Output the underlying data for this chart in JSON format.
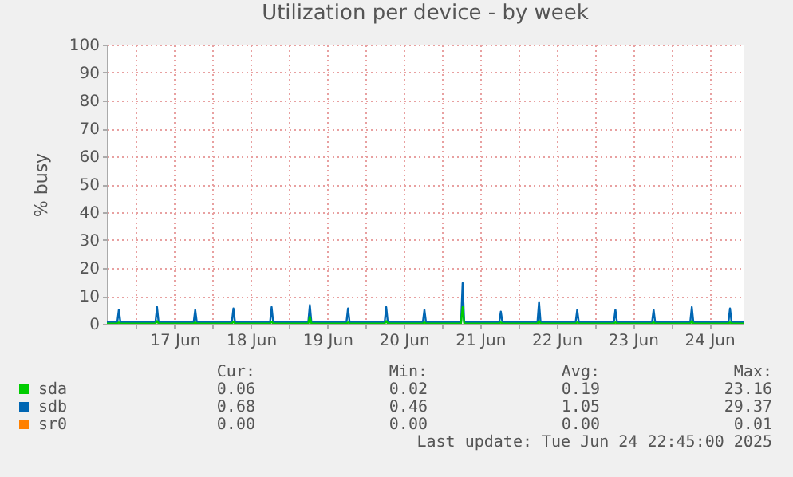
{
  "chart_data": {
    "type": "line",
    "title": "Utilization per device - by week",
    "ylabel": "% busy",
    "x": [
      "2025-06-16T14:45",
      "2025-06-16T18:00",
      "2025-06-16T18:30",
      "2025-06-16T19:00",
      "2025-06-17T06:00",
      "2025-06-17T06:30",
      "2025-06-17T07:00",
      "2025-06-17T18:00",
      "2025-06-17T18:30",
      "2025-06-17T19:00",
      "2025-06-18T06:00",
      "2025-06-18T06:30",
      "2025-06-18T07:00",
      "2025-06-18T18:00",
      "2025-06-18T18:30",
      "2025-06-18T19:00",
      "2025-06-19T06:00",
      "2025-06-19T06:30",
      "2025-06-19T07:00",
      "2025-06-19T18:00",
      "2025-06-19T18:30",
      "2025-06-19T19:00",
      "2025-06-20T06:00",
      "2025-06-20T06:30",
      "2025-06-20T07:00",
      "2025-06-20T18:00",
      "2025-06-20T18:30",
      "2025-06-20T19:00",
      "2025-06-21T06:00",
      "2025-06-21T06:30",
      "2025-06-21T07:00",
      "2025-06-21T18:00",
      "2025-06-21T18:30",
      "2025-06-21T19:00",
      "2025-06-22T06:00",
      "2025-06-22T06:30",
      "2025-06-22T07:00",
      "2025-06-22T18:00",
      "2025-06-22T18:30",
      "2025-06-22T19:00",
      "2025-06-23T06:00",
      "2025-06-23T06:30",
      "2025-06-23T07:00",
      "2025-06-23T18:00",
      "2025-06-23T18:30",
      "2025-06-23T19:00",
      "2025-06-24T06:00",
      "2025-06-24T06:30",
      "2025-06-24T07:00",
      "2025-06-24T18:00",
      "2025-06-24T18:30",
      "2025-06-24T19:00",
      "2025-06-24T22:45"
    ],
    "series": [
      {
        "name": "sda",
        "color": "#00cc00",
        "values": [
          0.1,
          0.1,
          0.5,
          0.1,
          0.1,
          1,
          0.1,
          0.1,
          0.5,
          0.1,
          0.1,
          0.8,
          0.1,
          0.1,
          0.8,
          0.1,
          0.1,
          2.5,
          0.1,
          0.1,
          0.5,
          0.1,
          0.1,
          1,
          0.1,
          0.1,
          0.5,
          0.1,
          0.1,
          6,
          0.1,
          0.1,
          0.5,
          0.1,
          0.1,
          1,
          0.1,
          0.1,
          0.5,
          0.1,
          0.1,
          0.5,
          0.1,
          0.1,
          0.5,
          0.1,
          0.1,
          1,
          0.1,
          0.1,
          0.5,
          0.1,
          0.1
        ]
      },
      {
        "name": "sdb",
        "color": "#0066b3",
        "values": [
          0.5,
          0.5,
          5,
          0.5,
          0.5,
          6,
          0.5,
          0.5,
          5,
          0.5,
          0.5,
          5.5,
          0.5,
          0.5,
          6,
          0.5,
          0.5,
          6.7,
          0.5,
          0.5,
          5.5,
          0.5,
          0.5,
          6,
          0.5,
          0.5,
          5,
          0.5,
          0.5,
          14.6,
          0.5,
          0.5,
          4.4,
          0.5,
          0.5,
          7.8,
          0.5,
          0.5,
          5,
          0.5,
          0.5,
          5,
          0.5,
          0.5,
          5,
          0.5,
          0.5,
          6,
          0.5,
          0.5,
          5.5,
          0.5,
          0.5
        ]
      },
      {
        "name": "sr0",
        "color": "#ff8000",
        "values": [
          null,
          null,
          null,
          null,
          null,
          null,
          null,
          null,
          null,
          null,
          null,
          null,
          null,
          null,
          null,
          null,
          null,
          null,
          null,
          null,
          null,
          null,
          null,
          null,
          null,
          null,
          null,
          null,
          null,
          null,
          null,
          null,
          null,
          null,
          null,
          null,
          null,
          null,
          null,
          null,
          null,
          null,
          null,
          null,
          null,
          null,
          null,
          null,
          null,
          null,
          null,
          null,
          null
        ]
      }
    ],
    "xlim": [
      "2025-06-16T14:45",
      "2025-06-24T22:45"
    ],
    "xticks": [
      {
        "value": "2025-06-17T00:00",
        "label": null
      },
      {
        "value": "2025-06-17T12:00",
        "label": "17 Jun"
      },
      {
        "value": "2025-06-18T00:00",
        "label": null
      },
      {
        "value": "2025-06-18T12:00",
        "label": "18 Jun"
      },
      {
        "value": "2025-06-19T00:00",
        "label": null
      },
      {
        "value": "2025-06-19T12:00",
        "label": "19 Jun"
      },
      {
        "value": "2025-06-20T00:00",
        "label": null
      },
      {
        "value": "2025-06-20T12:00",
        "label": "20 Jun"
      },
      {
        "value": "2025-06-21T00:00",
        "label": null
      },
      {
        "value": "2025-06-21T12:00",
        "label": "21 Jun"
      },
      {
        "value": "2025-06-22T00:00",
        "label": null
      },
      {
        "value": "2025-06-22T12:00",
        "label": "22 Jun"
      },
      {
        "value": "2025-06-23T00:00",
        "label": null
      },
      {
        "value": "2025-06-23T12:00",
        "label": "23 Jun"
      },
      {
        "value": "2025-06-24T00:00",
        "label": null
      },
      {
        "value": "2025-06-24T12:00",
        "label": "24 Jun"
      }
    ],
    "ylim": [
      0,
      100
    ],
    "yticks": [
      0,
      10,
      20,
      30,
      40,
      50,
      60,
      70,
      80,
      90,
      100
    ],
    "grid": true,
    "legend": "bottom",
    "marker": "none",
    "line_style": "solid",
    "annotations": [
      "Cur:",
      "Min:",
      "Avg:",
      "Max:",
      "0.06",
      "0.02",
      "0.19",
      "23.16",
      "0.68",
      "0.46",
      "1.05",
      "29.37",
      "0.00",
      "0.00",
      "0.00",
      "0.01",
      "Last update: Tue Jun 24 22:45:00 2025"
    ]
  }
}
